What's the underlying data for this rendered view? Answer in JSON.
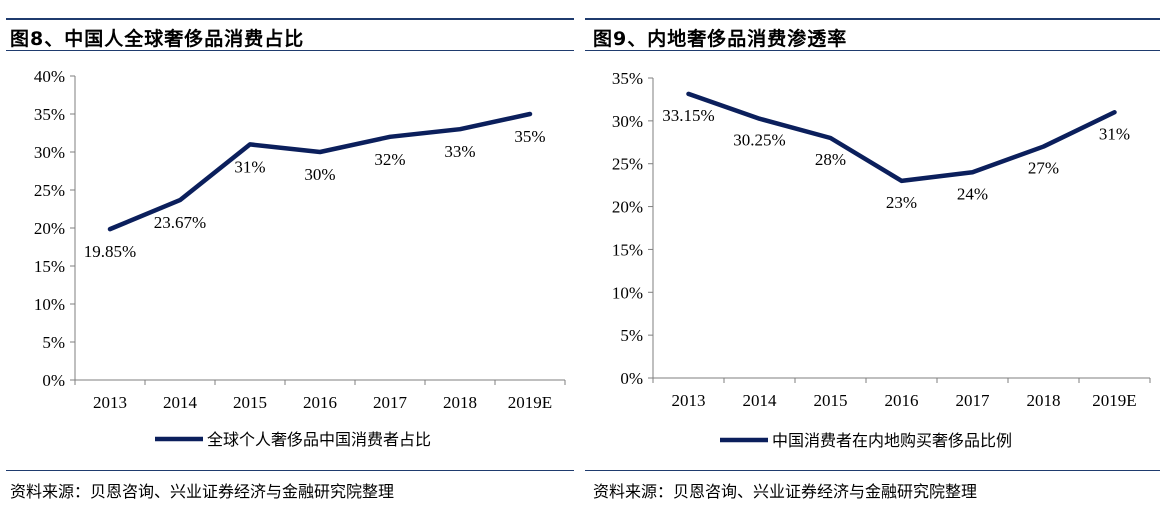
{
  "charts": [
    {
      "title": "图8、中国人全球奢侈品消费占比",
      "source": "资料来源：贝恩咨询、兴业证券经济与金融研究院整理",
      "legend": "全球个人奢侈品中国消费者占比",
      "color": "#0b1f5c",
      "ytick_labels": [
        "0%",
        "5%",
        "10%",
        "15%",
        "20%",
        "25%",
        "30%",
        "35%",
        "40%"
      ],
      "data_labels": [
        "19.85%",
        "23.67%",
        "31%",
        "30%",
        "32%",
        "33%",
        "35%"
      ]
    },
    {
      "title": "图9、内地奢侈品消费渗透率",
      "source": "资料来源：贝恩咨询、兴业证券经济与金融研究院整理",
      "legend": "中国消费者在内地购买奢侈品比例",
      "color": "#0b1f5c",
      "ytick_labels": [
        "0%",
        "5%",
        "10%",
        "15%",
        "20%",
        "25%",
        "30%",
        "35%"
      ],
      "data_labels": [
        "33.15%",
        "30.25%",
        "28%",
        "23%",
        "24%",
        "27%",
        "31%"
      ]
    }
  ],
  "chart_data": [
    {
      "type": "line",
      "title": "图8、中国人全球奢侈品消费占比",
      "categories": [
        "2013",
        "2014",
        "2015",
        "2016",
        "2017",
        "2018",
        "2019E"
      ],
      "series": [
        {
          "name": "全球个人奢侈品中国消费者占比",
          "values": [
            19.85,
            23.67,
            31,
            30,
            32,
            33,
            35
          ]
        }
      ],
      "ylim": [
        0,
        40
      ],
      "yticks": [
        0,
        5,
        10,
        15,
        20,
        25,
        30,
        35,
        40
      ],
      "legend": "bottom",
      "grid": false
    },
    {
      "type": "line",
      "title": "图9、内地奢侈品消费渗透率",
      "categories": [
        "2013",
        "2014",
        "2015",
        "2016",
        "2017",
        "2018",
        "2019E"
      ],
      "series": [
        {
          "name": "中国消费者在内地购买奢侈品比例",
          "values": [
            33.15,
            30.25,
            28,
            23,
            24,
            27,
            31
          ]
        }
      ],
      "ylim": [
        0,
        35
      ],
      "yticks": [
        0,
        5,
        10,
        15,
        20,
        25,
        30,
        35
      ],
      "legend": "bottom",
      "grid": false
    }
  ]
}
